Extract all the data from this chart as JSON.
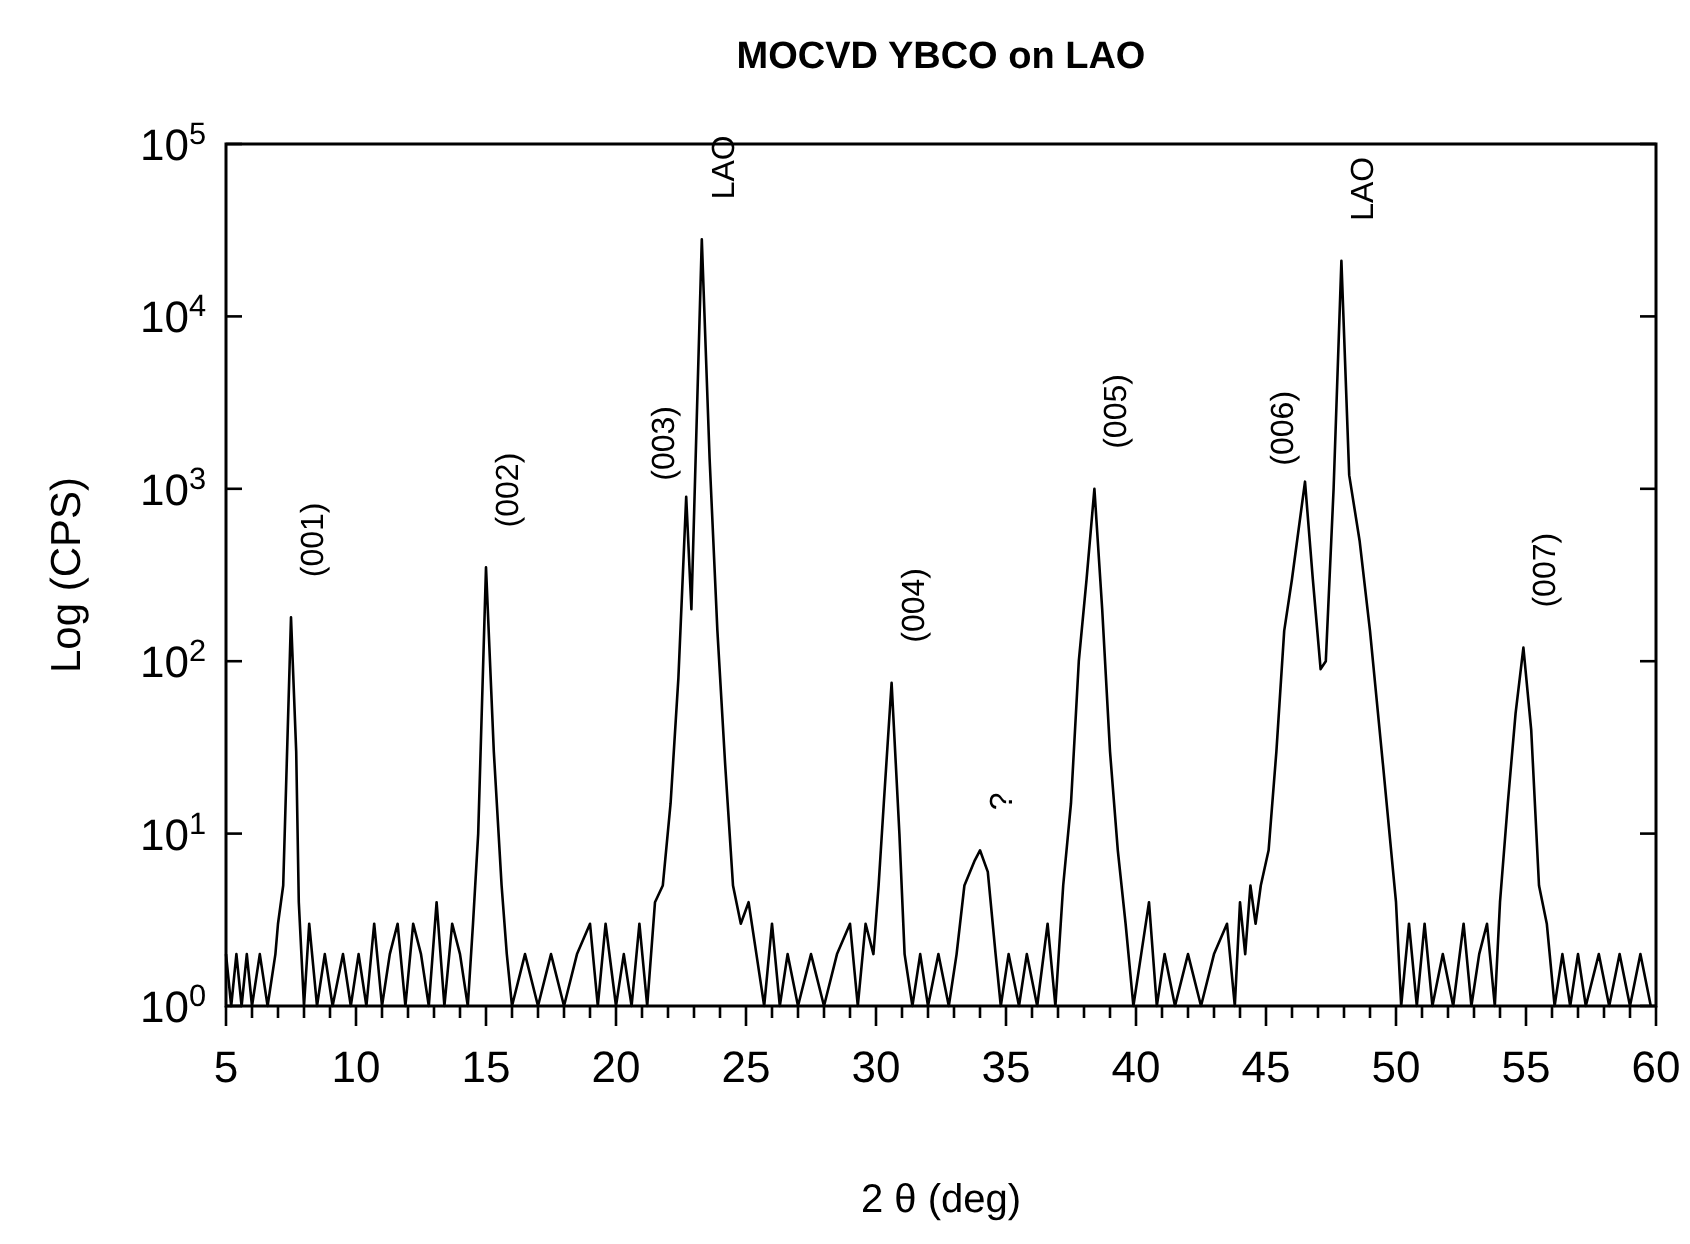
{
  "chart_data": {
    "type": "line",
    "title": "MOCVD YBCO on LAO",
    "xlabel": "2 θ (deg)",
    "ylabel": "Log (CPS)",
    "log": true,
    "grid": false,
    "marker": "none",
    "line_style": "solid",
    "xlim": [
      5,
      60
    ],
    "xticks": [
      5,
      {
        "value": 6,
        "label": null
      },
      {
        "value": 7,
        "label": null
      },
      {
        "value": 8,
        "label": null
      },
      {
        "value": 9,
        "label": null
      },
      10,
      {
        "value": 11,
        "label": null
      },
      {
        "value": 12,
        "label": null
      },
      {
        "value": 13,
        "label": null
      },
      {
        "value": 14,
        "label": null
      },
      15,
      {
        "value": 16,
        "label": null
      },
      {
        "value": 17,
        "label": null
      },
      {
        "value": 18,
        "label": null
      },
      {
        "value": 19,
        "label": null
      },
      20,
      {
        "value": 21,
        "label": null
      },
      {
        "value": 22,
        "label": null
      },
      {
        "value": 23,
        "label": null
      },
      {
        "value": 24,
        "label": null
      },
      25,
      {
        "value": 26,
        "label": null
      },
      {
        "value": 27,
        "label": null
      },
      {
        "value": 28,
        "label": null
      },
      {
        "value": 29,
        "label": null
      },
      30,
      {
        "value": 31,
        "label": null
      },
      {
        "value": 32,
        "label": null
      },
      {
        "value": 33,
        "label": null
      },
      {
        "value": 34,
        "label": null
      },
      35,
      {
        "value": 36,
        "label": null
      },
      {
        "value": 37,
        "label": null
      },
      {
        "value": 38,
        "label": null
      },
      {
        "value": 39,
        "label": null
      },
      40,
      {
        "value": 41,
        "label": null
      },
      {
        "value": 42,
        "label": null
      },
      {
        "value": 43,
        "label": null
      },
      {
        "value": 44,
        "label": null
      },
      45,
      {
        "value": 46,
        "label": null
      },
      {
        "value": 47,
        "label": null
      },
      {
        "value": 48,
        "label": null
      },
      {
        "value": 49,
        "label": null
      },
      50,
      {
        "value": 51,
        "label": null
      },
      {
        "value": 52,
        "label": null
      },
      {
        "value": 53,
        "label": null
      },
      {
        "value": 54,
        "label": null
      },
      55,
      {
        "value": 56,
        "label": null
      },
      {
        "value": 57,
        "label": null
      },
      {
        "value": 58,
        "label": null
      },
      {
        "value": 59,
        "label": null
      },
      60
    ],
    "ylim": [
      1,
      100000
    ],
    "yticks": [
      {
        "value": 1,
        "label": "10$^{0}$"
      },
      {
        "value": 10,
        "label": "10$^{1}$"
      },
      {
        "value": 100,
        "label": "10$^{2}$"
      },
      {
        "value": 1000,
        "label": "10$^{3}$"
      },
      {
        "value": 10000,
        "label": "10$^{4}$"
      },
      {
        "value": 100000,
        "label": "10$^{5}$"
      }
    ],
    "annotations": [
      {
        "text": "(001)",
        "x": 7.5,
        "y": 180
      },
      {
        "text": "(002)",
        "x": 15.0,
        "y": 350
      },
      {
        "text": "(003)",
        "x": 22.7,
        "y": 900
      },
      {
        "text": "LAO",
        "x": 23.3,
        "y": 28000
      },
      {
        "text": "(004)",
        "x": 30.6,
        "y": 75
      },
      {
        "text": "?",
        "x": 34.0,
        "y": 8
      },
      {
        "text": "(005)",
        "x": 38.4,
        "y": 1000
      },
      {
        "text": "(006)",
        "x": 46.5,
        "y": 1100
      },
      {
        "text": "LAO",
        "x": 47.9,
        "y": 21000
      },
      {
        "text": "(007)",
        "x": 54.9,
        "y": 120
      }
    ],
    "series": [
      {
        "color": "#000000",
        "x": [
          5.0,
          5.2,
          5.4,
          5.6,
          5.8,
          6.0,
          6.3,
          6.6,
          6.9,
          7.0,
          7.2,
          7.5,
          7.7,
          7.8,
          8.0,
          8.2,
          8.5,
          8.8,
          9.1,
          9.5,
          9.8,
          10.1,
          10.4,
          10.7,
          11.0,
          11.3,
          11.6,
          11.9,
          12.2,
          12.5,
          12.8,
          13.1,
          13.4,
          13.7,
          14.0,
          14.3,
          14.5,
          14.7,
          15.0,
          15.3,
          15.6,
          15.8,
          16.0,
          16.5,
          17.0,
          17.5,
          18.0,
          18.5,
          19.0,
          19.3,
          19.6,
          20.0,
          20.3,
          20.6,
          20.9,
          21.2,
          21.5,
          21.8,
          22.1,
          22.4,
          22.7,
          22.9,
          23.3,
          23.6,
          23.9,
          24.2,
          24.5,
          24.8,
          25.1,
          25.4,
          25.7,
          26.0,
          26.3,
          26.6,
          27.0,
          27.5,
          28.0,
          28.5,
          29.0,
          29.3,
          29.6,
          29.9,
          30.1,
          30.3,
          30.6,
          30.9,
          31.1,
          31.4,
          31.7,
          32.0,
          32.4,
          32.8,
          33.1,
          33.4,
          33.8,
          34.0,
          34.3,
          34.6,
          34.8,
          35.1,
          35.5,
          35.8,
          36.2,
          36.6,
          36.9,
          37.2,
          37.5,
          37.8,
          38.1,
          38.4,
          38.7,
          39.0,
          39.3,
          39.6,
          39.9,
          40.2,
          40.5,
          40.8,
          41.1,
          41.5,
          42.0,
          42.5,
          43.0,
          43.5,
          43.8,
          44.0,
          44.2,
          44.4,
          44.6,
          44.8,
          45.1,
          45.4,
          45.7,
          46.0,
          46.5,
          46.8,
          47.1,
          47.3,
          47.6,
          47.9,
          48.2,
          48.6,
          49.0,
          49.5,
          50.0,
          50.2,
          50.5,
          50.8,
          51.1,
          51.4,
          51.8,
          52.2,
          52.6,
          52.9,
          53.2,
          53.5,
          53.8,
          54.0,
          54.3,
          54.6,
          54.9,
          55.2,
          55.5,
          55.8,
          56.1,
          56.4,
          56.7,
          57.0,
          57.3,
          57.8,
          58.2,
          58.6,
          59.0,
          59.4,
          59.8
        ],
        "values": [
          2,
          1,
          2,
          1,
          2,
          1,
          2,
          1,
          2,
          3,
          5,
          180,
          30,
          4,
          1,
          3,
          1,
          2,
          1,
          2,
          1,
          2,
          1,
          3,
          1,
          2,
          3,
          1,
          3,
          2,
          1,
          4,
          1,
          3,
          2,
          1,
          3,
          10,
          350,
          30,
          5,
          2,
          1,
          2,
          1,
          2,
          1,
          2,
          3,
          1,
          3,
          1,
          2,
          1,
          3,
          1,
          4,
          5,
          15,
          80,
          900,
          200,
          28000,
          1500,
          150,
          25,
          5,
          3,
          4,
          2,
          1,
          3,
          1,
          2,
          1,
          2,
          1,
          2,
          3,
          1,
          3,
          2,
          5,
          15,
          75,
          10,
          2,
          1,
          2,
          1,
          2,
          1,
          2,
          5,
          7,
          8,
          6,
          2,
          1,
          2,
          1,
          2,
          1,
          3,
          1,
          5,
          15,
          100,
          300,
          1000,
          200,
          30,
          8,
          3,
          1,
          2,
          4,
          1,
          2,
          1,
          2,
          1,
          2,
          3,
          1,
          4,
          2,
          5,
          3,
          5,
          8,
          30,
          150,
          300,
          1100,
          300,
          90,
          100,
          1000,
          21000,
          1200,
          500,
          150,
          25,
          4,
          1,
          3,
          1,
          3,
          1,
          2,
          1,
          3,
          1,
          2,
          3,
          1,
          4,
          15,
          50,
          120,
          40,
          5,
          3,
          1,
          2,
          1,
          2,
          1,
          2,
          1,
          2,
          1,
          2,
          1
        ]
      }
    ]
  }
}
